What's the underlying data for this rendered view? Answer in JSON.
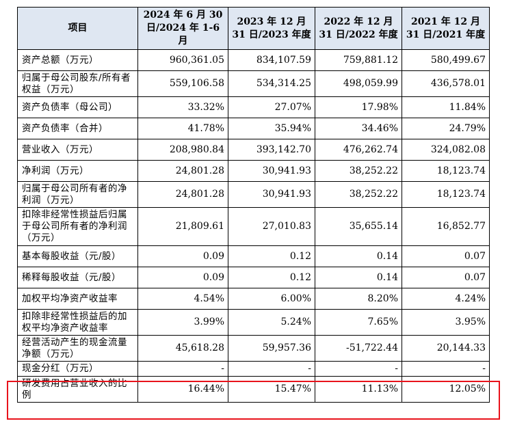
{
  "headers": {
    "item": "项目",
    "col1": "2024 年 6 月 30 日/2024 年 1-6 月",
    "col2": "2023 年 12 月 31 日/2023 年度",
    "col3": "2022 年 12 月 31 日/2022 年度",
    "col4": "2021 年 12 月 31 日/2021 年度"
  },
  "rows": [
    {
      "label": "资产总额（万元）",
      "v1": "960,361.05",
      "v2": "834,107.59",
      "v3": "759,881.12",
      "v4": "580,499.67"
    },
    {
      "label": "归属于母公司股东/所有者权益（万元）",
      "v1": "559,106.58",
      "v2": "534,314.25",
      "v3": "498,059.99",
      "v4": "436,578.01"
    },
    {
      "label": "资产负债率（母公司）",
      "v1": "33.32%",
      "v2": "27.07%",
      "v3": "17.98%",
      "v4": "11.84%"
    },
    {
      "label": "资产负债率（合并）",
      "v1": "41.78%",
      "v2": "35.94%",
      "v3": "34.46%",
      "v4": "24.79%"
    },
    {
      "label": "营业收入（万元）",
      "v1": "208,980.84",
      "v2": "393,142.70",
      "v3": "476,262.74",
      "v4": "324,082.08"
    },
    {
      "label": "净利润（万元）",
      "v1": "24,801.28",
      "v2": "30,941.93",
      "v3": "38,252.22",
      "v4": "18,123.74"
    },
    {
      "label": "归属于母公司所有者的净利润（万元）",
      "v1": "24,801.28",
      "v2": "30,941.93",
      "v3": "38,252.22",
      "v4": "18,123.74"
    },
    {
      "label": "扣除非经常性损益后归属于母公司所有者的净利润（万元）",
      "v1": "21,809.61",
      "v2": "27,010.83",
      "v3": "35,655.14",
      "v4": "16,852.77"
    },
    {
      "label": "基本每股收益（元/股）",
      "v1": "0.09",
      "v2": "0.12",
      "v3": "0.14",
      "v4": "0.07"
    },
    {
      "label": "稀释每股收益（元/股）",
      "v1": "0.09",
      "v2": "0.12",
      "v3": "0.14",
      "v4": "0.07"
    },
    {
      "label": "加权平均净资产收益率",
      "v1": "4.54%",
      "v2": "6.00%",
      "v3": "8.20%",
      "v4": "4.24%"
    },
    {
      "label": "扣除非经常性损益后的加权平均净资产收益率",
      "v1": "3.99%",
      "v2": "5.24%",
      "v3": "7.65%",
      "v4": "3.95%"
    },
    {
      "label": "经营活动产生的现金流量净额（万元）",
      "v1": "45,618.28",
      "v2": "59,957.36",
      "v3": "-51,722.44",
      "v4": "20,144.33"
    },
    {
      "label": "现金分红（万元）",
      "v1": "-",
      "v2": "-",
      "v3": "-",
      "v4": "-"
    },
    {
      "label": "研发费用占营业收入的比例",
      "v1": "16.44%",
      "v2": "15.47%",
      "v3": "11.13%",
      "v4": "12.05%"
    }
  ],
  "colors": {
    "header_bg": "#dfe7f2",
    "highlight_border": "#e8121b"
  }
}
